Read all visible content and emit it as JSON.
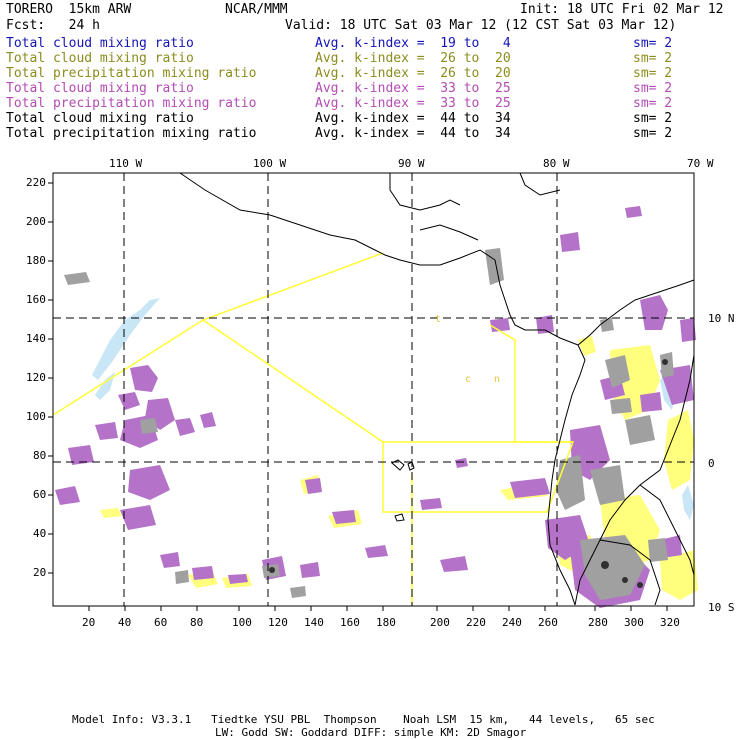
{
  "header": {
    "model": "TORERO  15km ARW",
    "center": "NCAR/MMM",
    "init": "Init: 18 UTC Fri 02 Mar 12",
    "fcst": "Fcst:   24 h",
    "valid": "Valid: 18 UTC Sat 03 Mar 12 (12 CST Sat 03 Mar 12)"
  },
  "legend": [
    {
      "name": "Total cloud mixing ratio",
      "kindex": "Avg. k-index =  19 to   4",
      "sm": "sm= 2",
      "color": "#1414b4"
    },
    {
      "name": "Total cloud mixing ratio",
      "kindex": "Avg. k-index =  26 to  20",
      "sm": "sm= 2",
      "color": "#8c8c1e"
    },
    {
      "name": "Total precipitation mixing ratio",
      "kindex": "Avg. k-index =  26 to  20",
      "sm": "sm= 2",
      "color": "#8c8c1e"
    },
    {
      "name": "Total cloud mixing ratio",
      "kindex": "Avg. k-index =  33 to  25",
      "sm": "sm= 2",
      "color": "#b44cb4"
    },
    {
      "name": "Total precipitation mixing ratio",
      "kindex": "Avg. k-index =  33 to  25",
      "sm": "sm= 2",
      "color": "#b44cb4"
    },
    {
      "name": "Total cloud mixing ratio",
      "kindex": "Avg. k-index =  44 to  34",
      "sm": "sm= 2",
      "color": "#000000"
    },
    {
      "name": "Total precipitation mixing ratio",
      "kindex": "Avg. k-index =  44 to  34",
      "sm": "sm= 2",
      "color": "#000000"
    }
  ],
  "map": {
    "lon_labels": [
      "110 W",
      "100 W",
      "90 W",
      "80 W",
      "70 W"
    ],
    "lat_labels": [
      "10 N",
      "0",
      "10 S"
    ],
    "x_ticks": [
      "20",
      "40",
      "60",
      "80",
      "100",
      "120",
      "140",
      "160",
      "180",
      "200",
      "220",
      "240",
      "260",
      "280",
      "300",
      "320"
    ],
    "y_ticks": [
      "220",
      "200",
      "180",
      "160",
      "140",
      "120",
      "100",
      "80",
      "60",
      "40",
      "20"
    ],
    "region_labels": [
      "t",
      "c",
      "n"
    ]
  },
  "footer": {
    "line1": "Model Info: V3.3.1   Tiedtke YSU PBL  Thompson    Noah LSM  15 km,   44 levels,   65 sec",
    "line2": "LW: Godd SW: Goddard DIFF: simple KM: 2D Smagor"
  },
  "colors": {
    "purple": "#b473c8",
    "gray": "#a0a0a0",
    "yellow": "#ffff7d",
    "lightblue": "#c8e6f5",
    "outline": "#ffff32"
  }
}
